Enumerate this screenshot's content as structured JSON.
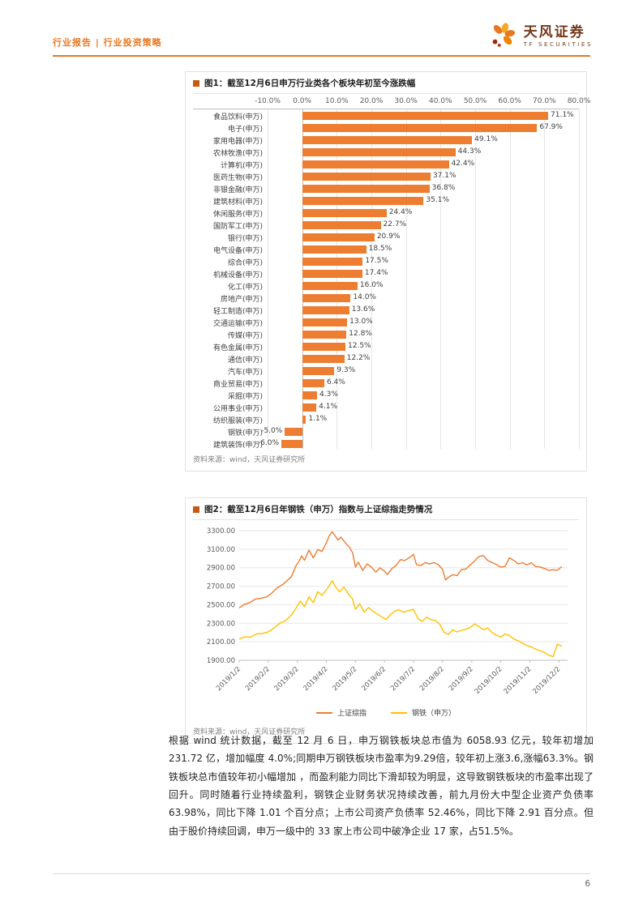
{
  "header": {
    "title": "行业报告 | 行业投资策略",
    "brand": {
      "name": "天风证券",
      "subtitle": "TF SECURITIES"
    }
  },
  "chart_data": [
    {
      "type": "bar",
      "orientation": "horizontal",
      "title": "图1：截至12月6日申万行业类各个板块年初至今涨跌幅",
      "source": "资料来源：wind，天风证券研究所",
      "xlim": [
        -10,
        80
      ],
      "axis_ticks": [
        "-10.0%",
        "0.0%",
        "10.0%",
        "20.0%",
        "30.0%",
        "40.0%",
        "50.0%",
        "60.0%",
        "70.0%",
        "80.0%"
      ],
      "bar_color": "#ED7D31",
      "categories": [
        "食品饮料(申万)",
        "电子(申万)",
        "家用电器(申万)",
        "农林牧渔(申万)",
        "计算机(申万)",
        "医药生物(申万)",
        "非银金融(申万)",
        "建筑材料(申万)",
        "休闲服务(申万)",
        "国防军工(申万)",
        "银行(申万)",
        "电气设备(申万)",
        "综合(申万)",
        "机械设备(申万)",
        "化工(申万)",
        "房地产(申万)",
        "轻工制造(申万)",
        "交通运输(申万)",
        "传媒(申万)",
        "有色金属(申万)",
        "通信(申万)",
        "汽车(申万)",
        "商业贸易(申万)",
        "采掘(申万)",
        "公用事业(申万)",
        "纺织服装(申万)",
        "钢铁(申万)",
        "建筑装饰(申万)"
      ],
      "values": [
        71.1,
        67.9,
        49.1,
        44.3,
        42.4,
        37.1,
        36.8,
        35.1,
        24.4,
        22.7,
        20.9,
        18.5,
        17.5,
        17.4,
        16.0,
        14.0,
        13.6,
        13.0,
        12.8,
        12.5,
        12.2,
        9.3,
        6.4,
        4.3,
        4.1,
        1.1,
        -5.0,
        -6.0
      ],
      "value_labels": [
        "71.1%",
        "67.9%",
        "49.1%",
        "44.3%",
        "42.4%",
        "37.1%",
        "36.8%",
        "35.1%",
        "24.4%",
        "22.7%",
        "20.9%",
        "18.5%",
        "17.5%",
        "17.4%",
        "16.0%",
        "14.0%",
        "13.6%",
        "13.0%",
        "12.8%",
        "12.5%",
        "12.2%",
        "9.3%",
        "6.4%",
        "4.3%",
        "4.1%",
        "1.1%",
        "-5.0%",
        "-6.0%"
      ]
    },
    {
      "type": "line",
      "title": "图2：截至12月6日年钢铁（申万）指数与上证综指走势情况",
      "source": "资料来源：wind，天风证券研究所",
      "ylim": [
        1900,
        3300
      ],
      "xmax": 11.3,
      "grid": "horizontal",
      "legend_position": "bottom",
      "y_ticks": [
        "1900.00",
        "2100.00",
        "2300.00",
        "2500.00",
        "2700.00",
        "2900.00",
        "3100.00",
        "3300.00"
      ],
      "x_ticks": [
        "2019/1/2",
        "2019/2/2",
        "2019/3/2",
        "2019/4/2",
        "2019/5/2",
        "2019/6/2",
        "2019/7/2",
        "2019/8/2",
        "2019/9/2",
        "2019/10/2",
        "2019/11/2",
        "2019/12/2"
      ],
      "series": [
        {
          "name": "上证综指",
          "color": "#ED7D31",
          "points": [
            [
              0,
              2465
            ],
            [
              0.15,
              2500
            ],
            [
              0.35,
              2520
            ],
            [
              0.55,
              2560
            ],
            [
              0.75,
              2570
            ],
            [
              0.95,
              2584
            ],
            [
              1.1,
              2620
            ],
            [
              1.3,
              2680
            ],
            [
              1.5,
              2720
            ],
            [
              1.65,
              2760
            ],
            [
              1.8,
              2804
            ],
            [
              1.95,
              2920
            ],
            [
              2.05,
              2964
            ],
            [
              2.15,
              3027
            ],
            [
              2.25,
              2980
            ],
            [
              2.4,
              3090
            ],
            [
              2.55,
              3005
            ],
            [
              2.7,
              3096
            ],
            [
              2.85,
              3075
            ],
            [
              3.0,
              3170
            ],
            [
              3.1,
              3246
            ],
            [
              3.2,
              3288
            ],
            [
              3.3,
              3244
            ],
            [
              3.4,
              3198
            ],
            [
              3.5,
              3230
            ],
            [
              3.6,
              3190
            ],
            [
              3.7,
              3150
            ],
            [
              3.8,
              3118
            ],
            [
              3.9,
              3062
            ],
            [
              4.0,
              2906
            ],
            [
              4.1,
              2960
            ],
            [
              4.25,
              2870
            ],
            [
              4.4,
              2940
            ],
            [
              4.55,
              2905
            ],
            [
              4.7,
              2852
            ],
            [
              4.85,
              2898
            ],
            [
              5.0,
              2862
            ],
            [
              5.1,
              2827
            ],
            [
              5.25,
              2890
            ],
            [
              5.4,
              2925
            ],
            [
              5.55,
              2987
            ],
            [
              5.7,
              2978
            ],
            [
              5.85,
              3008
            ],
            [
              6.0,
              3044
            ],
            [
              6.1,
              2933
            ],
            [
              6.25,
              2924
            ],
            [
              6.4,
              2955
            ],
            [
              6.55,
              2940
            ],
            [
              6.7,
              2955
            ],
            [
              6.85,
              2933
            ],
            [
              7.0,
              2880
            ],
            [
              7.1,
              2768
            ],
            [
              7.2,
              2797
            ],
            [
              7.35,
              2824
            ],
            [
              7.5,
              2815
            ],
            [
              7.65,
              2880
            ],
            [
              7.8,
              2886
            ],
            [
              7.95,
              2930
            ],
            [
              8.1,
              2972
            ],
            [
              8.25,
              3021
            ],
            [
              8.4,
              3031
            ],
            [
              8.55,
              2978
            ],
            [
              8.7,
              2955
            ],
            [
              8.85,
              2933
            ],
            [
              9.0,
              2905
            ],
            [
              9.15,
              2913
            ],
            [
              9.3,
              3007
            ],
            [
              9.45,
              2978
            ],
            [
              9.6,
              2940
            ],
            [
              9.75,
              2954
            ],
            [
              9.9,
              2929
            ],
            [
              10.05,
              2954
            ],
            [
              10.2,
              2912
            ],
            [
              10.35,
              2909
            ],
            [
              10.5,
              2891
            ],
            [
              10.65,
              2872
            ],
            [
              10.8,
              2878
            ],
            [
              10.95,
              2872
            ],
            [
              11.1,
              2912
            ]
          ]
        },
        {
          "name": "钢铁（申万）",
          "color": "#FFC000",
          "points": [
            [
              0,
              2130
            ],
            [
              0.2,
              2155
            ],
            [
              0.4,
              2150
            ],
            [
              0.6,
              2185
            ],
            [
              0.8,
              2190
            ],
            [
              1.0,
              2205
            ],
            [
              1.2,
              2250
            ],
            [
              1.4,
              2300
            ],
            [
              1.6,
              2330
            ],
            [
              1.8,
              2390
            ],
            [
              1.95,
              2460
            ],
            [
              2.1,
              2540
            ],
            [
              2.25,
              2480
            ],
            [
              2.4,
              2585
            ],
            [
              2.55,
              2520
            ],
            [
              2.7,
              2640
            ],
            [
              2.85,
              2600
            ],
            [
              3.0,
              2660
            ],
            [
              3.1,
              2705
            ],
            [
              3.2,
              2760
            ],
            [
              3.3,
              2700
            ],
            [
              3.45,
              2640
            ],
            [
              3.6,
              2690
            ],
            [
              3.75,
              2620
            ],
            [
              3.9,
              2560
            ],
            [
              4.0,
              2450
            ],
            [
              4.15,
              2510
            ],
            [
              4.3,
              2420
            ],
            [
              4.45,
              2470
            ],
            [
              4.6,
              2430
            ],
            [
              4.75,
              2400
            ],
            [
              4.9,
              2370
            ],
            [
              5.05,
              2340
            ],
            [
              5.2,
              2390
            ],
            [
              5.35,
              2430
            ],
            [
              5.5,
              2445
            ],
            [
              5.65,
              2420
            ],
            [
              5.8,
              2435
            ],
            [
              6.0,
              2450
            ],
            [
              6.15,
              2350
            ],
            [
              6.3,
              2320
            ],
            [
              6.45,
              2365
            ],
            [
              6.6,
              2340
            ],
            [
              6.75,
              2330
            ],
            [
              6.9,
              2290
            ],
            [
              7.05,
              2200
            ],
            [
              7.2,
              2180
            ],
            [
              7.35,
              2230
            ],
            [
              7.5,
              2205
            ],
            [
              7.65,
              2225
            ],
            [
              7.8,
              2235
            ],
            [
              7.95,
              2255
            ],
            [
              8.1,
              2290
            ],
            [
              8.25,
              2265
            ],
            [
              8.4,
              2230
            ],
            [
              8.55,
              2250
            ],
            [
              8.7,
              2200
            ],
            [
              8.85,
              2170
            ],
            [
              9.0,
              2150
            ],
            [
              9.15,
              2185
            ],
            [
              9.3,
              2165
            ],
            [
              9.45,
              2130
            ],
            [
              9.6,
              2110
            ],
            [
              9.75,
              2085
            ],
            [
              9.9,
              2060
            ],
            [
              10.05,
              2045
            ],
            [
              10.2,
              2020
            ],
            [
              10.35,
              2005
            ],
            [
              10.5,
              1985
            ],
            [
              10.65,
              1955
            ],
            [
              10.8,
              1940
            ],
            [
              10.95,
              2075
            ],
            [
              11.1,
              2050
            ]
          ]
        }
      ]
    }
  ],
  "body_paragraph": "根据 wind 统计数据，截至 12 月 6 日，申万钢铁板块总市值为 6058.93 亿元，较年初增加 231.72 亿，增加幅度 4.0%;同期申万钢铁板块市盈率为9.29倍，较年初上涨3.6,涨幅63.3%。钢铁板块总市值较年初小幅增加 ，而盈利能力同比下滑却较为明显，这导致钢铁板块的市盈率出现了回升。同时随着行业持续盈利，钢铁企业财务状况持续改善，前九月份大中型企业资产负债率 63.98%，同比下降 1.01 个百分点；上市公司资产负债率 52.46%，同比下降 2.91 百分点。但由于股价持续回调，申万一级中的 33 家上市公司中破净企业 17 家，占51.5%。",
  "footer": {
    "page_number": "6"
  },
  "colors": {
    "accent_orange": "#E87722",
    "bar_orange": "#ED7D31",
    "line_yellow": "#FFC000",
    "brand_text": "#73391D"
  }
}
